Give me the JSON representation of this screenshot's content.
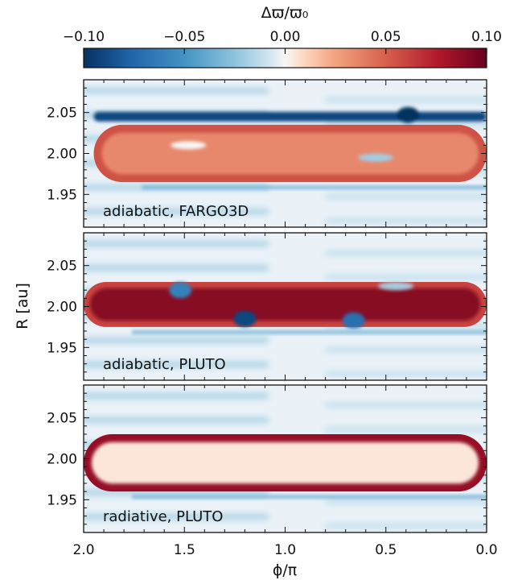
{
  "chart_data": {
    "type": "heatmap",
    "colorbar": {
      "label": "Δϖ/ϖ₀",
      "range": [
        -0.1,
        0.1
      ],
      "ticks": [
        -0.1,
        -0.05,
        0.0,
        0.05,
        0.1
      ],
      "tick_labels": [
        "−0.10",
        "−0.05",
        "0.00",
        "0.05",
        "0.10"
      ],
      "colormap": "RdBu_r",
      "placement": "top"
    },
    "xlabel": "ϕ/π",
    "ylabel": "R [au]",
    "xlim": [
      2.0,
      0.0
    ],
    "ylim": [
      1.91,
      2.09
    ],
    "x_ticks": [
      2.0,
      1.5,
      1.0,
      0.5,
      0.0
    ],
    "x_tick_labels": [
      "2.0",
      "1.5",
      "1.0",
      "0.5",
      "0.0"
    ],
    "y_ticks": [
      1.95,
      2.0,
      2.05
    ],
    "y_tick_labels": [
      "1.95",
      "2.00",
      "2.05"
    ],
    "colors": {
      "deep_blue": "#053061",
      "mid_blue": "#2166ac",
      "light_blue": "#92c5de",
      "white": "#f7f7f7",
      "light_red": "#f4a582",
      "mid_red": "#d6604d",
      "deep_red": "#67001f"
    },
    "panels": [
      {
        "label": "adiabatic, FARGO3D",
        "band": {
          "r_inner": 1.965,
          "r_outer": 2.035,
          "phi_min": 0.0,
          "phi_max": 1.95,
          "edge_value": 0.055,
          "interior_value": 0.035
        },
        "features": [
          {
            "kind": "blue-stripe",
            "phi_min": 0.0,
            "phi_max": 1.95,
            "r": 2.045,
            "value": -0.09
          },
          {
            "kind": "blue-spot",
            "phi": 0.39,
            "r": 2.047,
            "value": -0.1
          },
          {
            "kind": "light-spot",
            "phi": 0.55,
            "r": 1.995,
            "value": -0.02
          },
          {
            "kind": "light-spot",
            "phi": 1.48,
            "r": 2.01,
            "value": 0.0
          }
        ]
      },
      {
        "label": "adiabatic, PLUTO",
        "band": {
          "r_inner": 1.975,
          "r_outer": 2.03,
          "phi_min": 0.0,
          "phi_max": 2.0,
          "edge_value": 0.06,
          "interior_value": 0.09
        },
        "features": [
          {
            "kind": "blue-spot",
            "phi": 1.52,
            "r": 2.02,
            "value": -0.06
          },
          {
            "kind": "blue-spot",
            "phi": 1.2,
            "r": 1.985,
            "value": -0.09
          },
          {
            "kind": "blue-spot",
            "phi": 0.66,
            "r": 1.983,
            "value": -0.07
          },
          {
            "kind": "light-spot",
            "phi": 0.45,
            "r": 2.025,
            "value": -0.02
          }
        ]
      },
      {
        "label": "radiative, PLUTO",
        "band": {
          "r_inner": 1.96,
          "r_outer": 2.03,
          "phi_min": 0.0,
          "phi_max": 2.0,
          "edge_value": 0.085,
          "interior_value": 0.005
        },
        "features": []
      }
    ]
  }
}
